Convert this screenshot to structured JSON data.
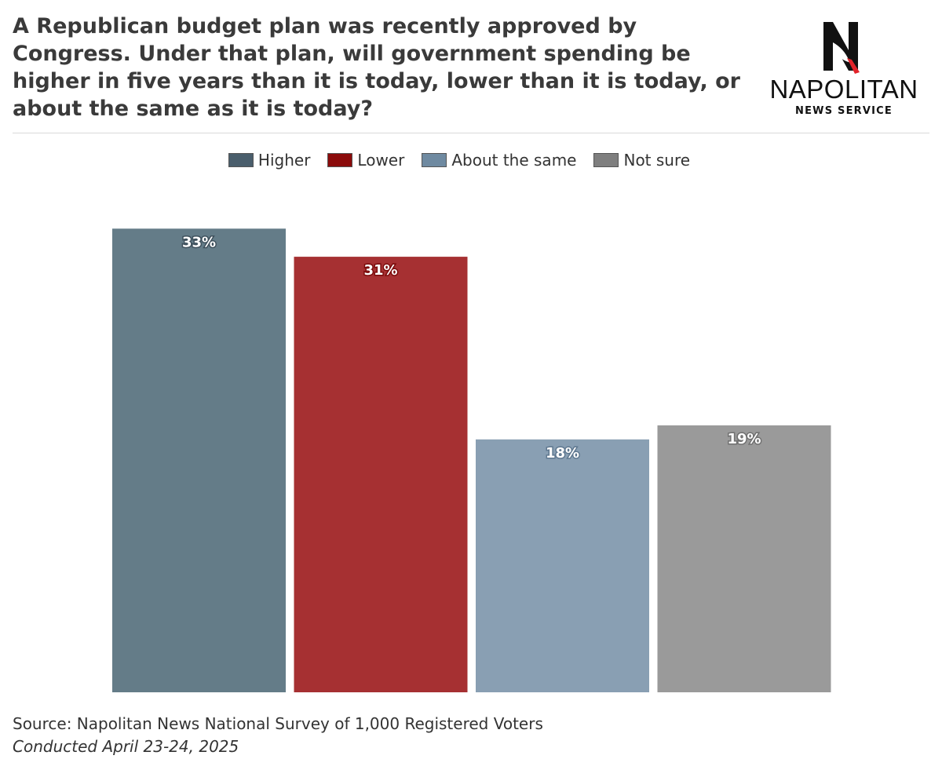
{
  "title": "A Republican budget plan was recently approved by Congress. Under that plan, will government spending be higher in five years than it is today, lower than it is today, or about the same as it is today?",
  "logo": {
    "brand": "NAPOLITAN",
    "subtitle": "NEWS SERVICE",
    "icon": "napolitan-n-eagle-logo"
  },
  "chart_data": {
    "type": "bar",
    "categories": [
      "Higher",
      "Lower",
      "About the same",
      "Not sure"
    ],
    "values": [
      33,
      31,
      18,
      19
    ],
    "value_labels": [
      "33%",
      "31%",
      "18%",
      "19%"
    ],
    "colors": [
      "#647c88",
      "#a63032",
      "#899fb3",
      "#9a9a9a"
    ],
    "legend_colors": [
      "#4a5e6c",
      "#8b0b0b",
      "#6f8aa1",
      "#7f7f7f"
    ],
    "label_outline_colors": [
      "#3e505c",
      "#7a0a0a",
      "#5f7890",
      "#707070"
    ],
    "ylim": [
      0,
      35
    ],
    "grid": false,
    "legend_position": "top-center",
    "xlabel": "",
    "ylabel": ""
  },
  "footer": {
    "source": "Source: Napolitan News National Survey of 1,000 Registered Voters",
    "conducted": "Conducted April 23-24, 2025"
  }
}
